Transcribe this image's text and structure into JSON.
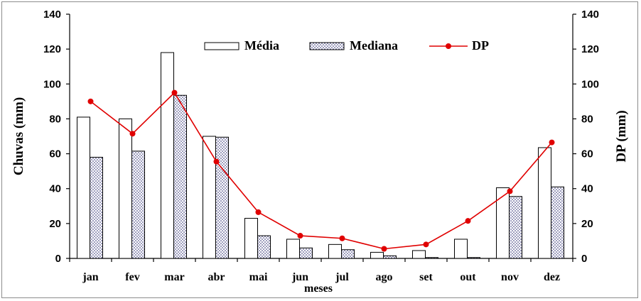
{
  "chart_data": {
    "type": "bar",
    "categories": [
      "jan",
      "fev",
      "mar",
      "abr",
      "mai",
      "jun",
      "jul",
      "ago",
      "set",
      "out",
      "nov",
      "dez"
    ],
    "series": [
      {
        "name": "Média",
        "kind": "bar",
        "pattern": "white",
        "values": [
          81,
          80,
          118,
          70,
          23,
          11,
          8,
          3.5,
          4.5,
          11,
          40.5,
          63.5
        ]
      },
      {
        "name": "Mediana",
        "kind": "bar",
        "pattern": "dotted",
        "values": [
          58,
          61.5,
          93.5,
          69.5,
          13,
          6,
          5,
          1.5,
          0.5,
          0.5,
          35.5,
          41
        ]
      },
      {
        "name": "DP",
        "kind": "line",
        "axis": "right",
        "color": "#e00000",
        "values": [
          90,
          71.5,
          95,
          55.5,
          26.5,
          13,
          11.5,
          5.5,
          8,
          21.5,
          38.5,
          66.5
        ]
      }
    ],
    "xlabel": "meses",
    "ylabel": "Chuvas (mm)",
    "y2label": "DP (mm)",
    "ylim": [
      0,
      140
    ],
    "y2lim": [
      0,
      140
    ],
    "yticks": [
      "0",
      "20",
      "40",
      "60",
      "80",
      "100",
      "120",
      "140"
    ],
    "legend_position": "top-center",
    "grid": false
  }
}
